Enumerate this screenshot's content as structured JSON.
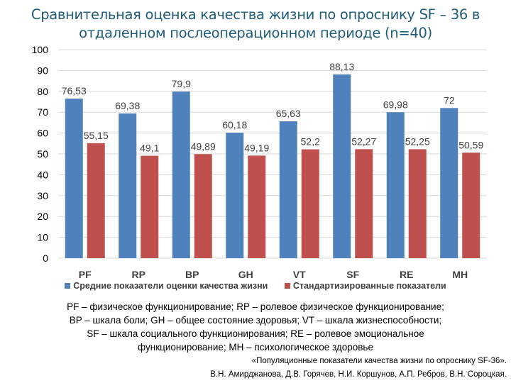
{
  "chart_data": {
    "type": "bar",
    "title": "Сравнительная оценка качества жизни по опроснику SF – 36 в отдаленном послеоперационном периоде (n=40)",
    "categories": [
      "PF",
      "RP",
      "BP",
      "GH",
      "VT",
      "SF",
      "RE",
      "MH"
    ],
    "series": [
      {
        "name": "Средние показатели оценки качества жизни",
        "color": "#4F81BD",
        "values": [
          76.53,
          69.38,
          79.9,
          60.18,
          65.63,
          88.13,
          69.98,
          72
        ],
        "labels": [
          "76,53",
          "69,38",
          "79,9",
          "60,18",
          "65,63",
          "88,13",
          "69,98",
          "72"
        ]
      },
      {
        "name": "Стандартизированные показатели",
        "color": "#C0504D",
        "values": [
          55.15,
          49.1,
          49.89,
          49.19,
          52.2,
          52.27,
          52.25,
          50.59
        ],
        "labels": [
          "55,15",
          "49,1",
          "49,89",
          "49,19",
          "52,2",
          "52,27",
          "52,25",
          "50,59"
        ]
      }
    ],
    "ylim": [
      0,
      100
    ],
    "yticks": [
      0,
      10,
      20,
      30,
      40,
      50,
      60,
      70,
      80,
      90,
      100
    ],
    "grid": true,
    "legend": "bottom",
    "xlabel": "",
    "ylabel": ""
  },
  "description": [
    "PF – физическое функционирование; RP – ролевое физическое функционирование;",
    "BP – шкала боли; GH – общее состояние здоровья; VT – шкала жизнеспособности;",
    "SF – шкала социального функционирования; RE – ролевое эмоциональное",
    "функционирование; MH – психологическое здоровье"
  ],
  "reference": [
    "«Популяционные показатели качества жизни по опроснику SF-36».",
    "В.Н. Амирджанова, Д.В. Горячев, Н.И. Коршунов, А.П. Ребров, В.Н. Сороцкая."
  ]
}
